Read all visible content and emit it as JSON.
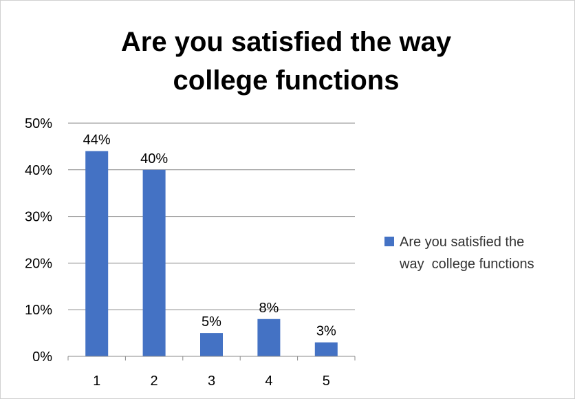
{
  "chart_data": {
    "type": "bar",
    "title_lines": [
      "Are you satisfied the way",
      "college functions"
    ],
    "categories": [
      "1",
      "2",
      "3",
      "4",
      "5"
    ],
    "series": [
      {
        "name_lines": [
          "Are you satisfied the",
          "way  college functions"
        ],
        "values": [
          44,
          40,
          5,
          8,
          3
        ],
        "data_labels": [
          "44%",
          "40%",
          "5%",
          "8%",
          "3%"
        ],
        "color": "#4472C4"
      }
    ],
    "ylim": [
      0,
      50
    ],
    "yticks": [
      0,
      10,
      20,
      30,
      40,
      50
    ],
    "ytick_labels": [
      "0%",
      "10%",
      "20%",
      "30%",
      "40%",
      "50%"
    ],
    "grid": true,
    "legend": "right",
    "gridline_color": "#888888"
  }
}
